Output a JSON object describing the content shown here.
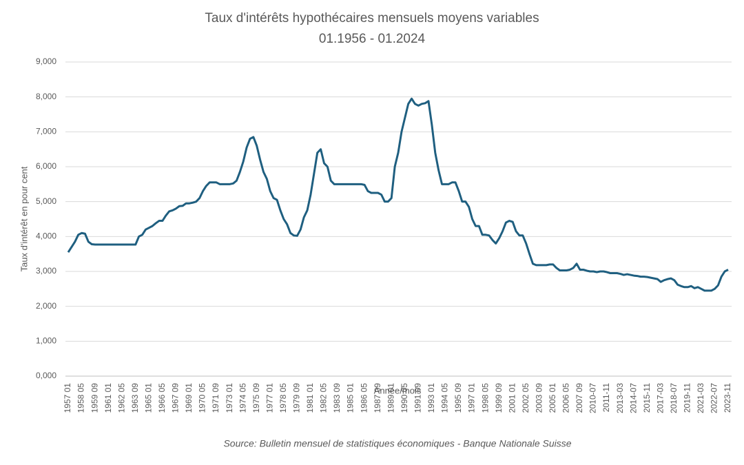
{
  "chart_data": {
    "type": "line",
    "title": "Taux d'intérêts hypothécaires mensuels moyens variables",
    "subtitle": "01.1956 - 01.2024",
    "x_label": "Année/mois",
    "y_label": "Taux d'intérêt en pour cent",
    "source": "Source: Bulletin mensuel de statistiques économiques - Banque Nationale Suisse",
    "color": "#1f5f80",
    "grid": true,
    "ylim": [
      0,
      9
    ],
    "yticks": [
      {
        "value": 0,
        "label": "0,000"
      },
      {
        "value": 1,
        "label": "1,000"
      },
      {
        "value": 2,
        "label": "2,000"
      },
      {
        "value": 3,
        "label": "3,000"
      },
      {
        "value": 4,
        "label": "4,000"
      },
      {
        "value": 5,
        "label": "5,000"
      },
      {
        "value": 6,
        "label": "6,000"
      },
      {
        "value": 7,
        "label": "7,000"
      },
      {
        "value": 8,
        "label": "8,000"
      },
      {
        "value": 9,
        "label": "9,000"
      }
    ],
    "categories": [
      "1957 01",
      null,
      null,
      null,
      "1958 05",
      null,
      null,
      null,
      "1959 09",
      null,
      null,
      null,
      "1961 01",
      null,
      null,
      null,
      "1962 05",
      null,
      null,
      null,
      "1963 09",
      null,
      null,
      null,
      "1965 01",
      null,
      null,
      null,
      "1966 05",
      null,
      null,
      null,
      "1967 09",
      null,
      null,
      null,
      "1969 01",
      null,
      null,
      null,
      "1970 05",
      null,
      null,
      null,
      "1971 09",
      null,
      null,
      null,
      "1973 01",
      null,
      null,
      null,
      "1974 05",
      null,
      null,
      null,
      "1975 09",
      null,
      null,
      null,
      "1977 01",
      null,
      null,
      null,
      "1978 05",
      null,
      null,
      null,
      "1979 09",
      null,
      null,
      null,
      "1981 01",
      null,
      null,
      null,
      "1982 05",
      null,
      null,
      null,
      "1983 09",
      null,
      null,
      null,
      "1985 01",
      null,
      null,
      null,
      "1986 05",
      null,
      null,
      null,
      "1987 09",
      null,
      null,
      null,
      "1989 01",
      null,
      null,
      null,
      "1990 05",
      null,
      null,
      null,
      "1991 09",
      null,
      null,
      null,
      "1993 01",
      null,
      null,
      null,
      "1994 05",
      null,
      null,
      null,
      "1995 09",
      null,
      null,
      null,
      "1997 01",
      null,
      null,
      null,
      "1998 05",
      null,
      null,
      null,
      "1999 09",
      null,
      null,
      null,
      "2001 01",
      null,
      null,
      null,
      "2002 05",
      null,
      null,
      null,
      "2003 09",
      null,
      null,
      null,
      "2005 01",
      null,
      null,
      null,
      "2006 05",
      null,
      null,
      null,
      "2007 09",
      null,
      null,
      null,
      "2010-07",
      null,
      null,
      null,
      "2011-11",
      null,
      null,
      null,
      "2013-03",
      null,
      null,
      null,
      "2014-07",
      null,
      null,
      null,
      "2015-11",
      null,
      null,
      null,
      "2017-03",
      null,
      null,
      null,
      "2018-07",
      null,
      null,
      null,
      "2019-11",
      null,
      null,
      null,
      "2021-03",
      null,
      null,
      null,
      "2022-07",
      null,
      null,
      null,
      "2023-11"
    ],
    "values": [
      3.55,
      3.7,
      3.85,
      4.05,
      4.1,
      4.08,
      3.85,
      3.78,
      3.77,
      3.77,
      3.77,
      3.77,
      3.77,
      3.77,
      3.77,
      3.77,
      3.77,
      3.77,
      3.77,
      3.77,
      3.77,
      4.0,
      4.05,
      4.2,
      4.25,
      4.3,
      4.38,
      4.45,
      4.45,
      4.6,
      4.72,
      4.75,
      4.8,
      4.87,
      4.88,
      4.95,
      4.95,
      4.97,
      5.0,
      5.1,
      5.3,
      5.45,
      5.55,
      5.55,
      5.55,
      5.5,
      5.5,
      5.5,
      5.5,
      5.52,
      5.6,
      5.85,
      6.15,
      6.55,
      6.8,
      6.85,
      6.6,
      6.2,
      5.85,
      5.65,
      5.3,
      5.1,
      5.05,
      4.75,
      4.5,
      4.35,
      4.1,
      4.03,
      4.02,
      4.2,
      4.55,
      4.75,
      5.2,
      5.8,
      6.4,
      6.5,
      6.1,
      6.0,
      5.6,
      5.5,
      5.5,
      5.5,
      5.5,
      5.5,
      5.5,
      5.5,
      5.5,
      5.5,
      5.48,
      5.3,
      5.25,
      5.25,
      5.25,
      5.2,
      5.0,
      5.0,
      5.1,
      6.0,
      6.4,
      7.0,
      7.4,
      7.8,
      7.95,
      7.8,
      7.75,
      7.8,
      7.82,
      7.88,
      7.2,
      6.4,
      5.9,
      5.5,
      5.5,
      5.5,
      5.55,
      5.55,
      5.3,
      5.0,
      5.0,
      4.85,
      4.5,
      4.3,
      4.3,
      4.05,
      4.05,
      4.03,
      3.9,
      3.8,
      3.95,
      4.15,
      4.4,
      4.45,
      4.42,
      4.15,
      4.03,
      4.03,
      3.8,
      3.5,
      3.22,
      3.18,
      3.18,
      3.18,
      3.18,
      3.2,
      3.2,
      3.1,
      3.03,
      3.03,
      3.03,
      3.05,
      3.1,
      3.22,
      3.05,
      3.05,
      3.02,
      3.0,
      3.0,
      2.98,
      3.0,
      3.0,
      2.98,
      2.95,
      2.95,
      2.95,
      2.93,
      2.9,
      2.92,
      2.9,
      2.88,
      2.87,
      2.85,
      2.85,
      2.84,
      2.82,
      2.8,
      2.78,
      2.7,
      2.75,
      2.78,
      2.8,
      2.75,
      2.62,
      2.58,
      2.55,
      2.55,
      2.58,
      2.52,
      2.55,
      2.5,
      2.45,
      2.45,
      2.45,
      2.5,
      2.6,
      2.85,
      3.0,
      3.05
    ]
  }
}
